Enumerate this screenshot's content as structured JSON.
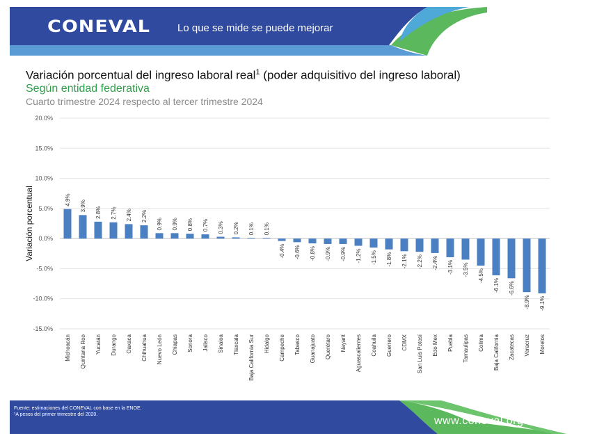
{
  "header": {
    "logo": "CONEVAL",
    "slogan": "Lo que se mide se puede mejorar"
  },
  "titles": {
    "title": "Variación porcentual del ingreso laboral real",
    "title_sup": "1",
    "title_paren": " (poder adquisitivo del ingreso laboral)",
    "subtitle": "Según entidad federativa",
    "period": "Cuarto trimestre 2024 respecto al tercer trimestre 2024"
  },
  "chart_data": {
    "type": "bar",
    "ylabel": "Variación porcentual",
    "ylim": [
      -15,
      20
    ],
    "yticks": [
      "20.0%",
      "15.0%",
      "10.0%",
      "5.0%",
      "0.0%",
      "-5.0%",
      "-10.0%",
      "-15.0%"
    ],
    "grid": true,
    "categories": [
      "Michoacán",
      "Quintana Roo",
      "Yucatán",
      "Durango",
      "Oaxaca",
      "Chihuahua",
      "Nuevo León",
      "Chiapas",
      "Sonora",
      "Jalisco",
      "Sinaloa",
      "Tlaxcala",
      "Baja California Sur",
      "Hidalgo",
      "Campeche",
      "Tabasco",
      "Guanajuato",
      "Querétaro",
      "Nayarit",
      "Aguascalientes",
      "Coahuila",
      "Guerrero",
      "CDMX",
      "San Luis Potosí",
      "Edo Mex",
      "Puebla",
      "Tamaulipas",
      "Colima",
      "Baja California",
      "Zacatecas",
      "Veracruz",
      "Morelos"
    ],
    "values": [
      4.9,
      3.9,
      2.8,
      2.7,
      2.4,
      2.2,
      0.9,
      0.9,
      0.8,
      0.7,
      0.3,
      0.2,
      0.1,
      0.1,
      -0.4,
      -0.6,
      -0.8,
      -0.9,
      -0.9,
      -1.2,
      -1.5,
      -1.8,
      -2.1,
      -2.2,
      -2.4,
      -3.1,
      -3.5,
      -4.5,
      -6.1,
      -6.6,
      -8.9,
      -9.1
    ],
    "value_labels": [
      "4.9%",
      "3.9%",
      "2.8%",
      "2.7%",
      "2.4%",
      "2.2%",
      "0.9%",
      "0.9%",
      "0.8%",
      "0.7%",
      "0.3%",
      "0.2%",
      "0.1%",
      "0.1%",
      "-0.4%",
      "-0.6%",
      "-0.8%",
      "-0.9%",
      "-0.9%",
      "-1.2%",
      "-1.5%",
      "-1.8%",
      "-2.1%",
      "-2.2%",
      "-2.4%",
      "-3.1%",
      "-3.5%",
      "-4.5%",
      "-6.1%",
      "-6.6%",
      "-8.9%",
      "-9.1%"
    ],
    "bar_color": "#4a7fc1"
  },
  "footer": {
    "source": "Fuente: estimaciones del CONEVAL con base en la ENOE.",
    "note": "¹A pesos del primer trimestre del 2020.",
    "url": "www.coneval.org.mx"
  },
  "colors": {
    "header_blue": "#2f4a9e",
    "accent_blue": "#5b9bd5",
    "green": "#5cb85c",
    "title_green": "#2e9e48"
  }
}
